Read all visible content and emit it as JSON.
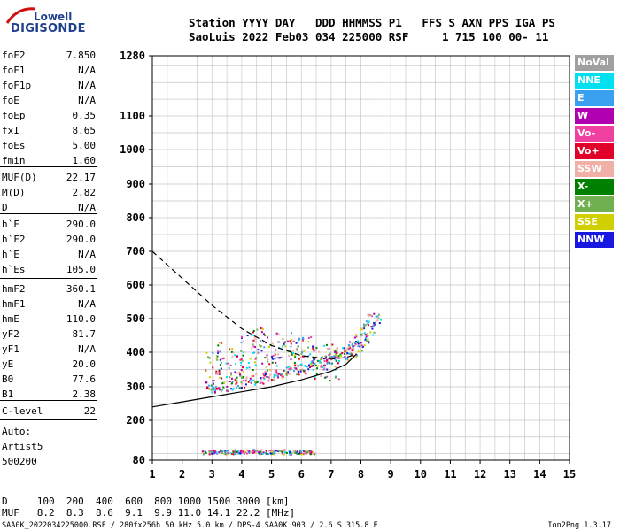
{
  "logo": {
    "top": "Lowell",
    "bottom": "DIGISONDE"
  },
  "header": {
    "line1": "Station YYYY DAY   DDD HHMMSS P1   FFS S AXN PPS IGA PS",
    "line2": "SaoLuis 2022 Feb03 034 225000 RSF     1 715 100 00- 11"
  },
  "params": [
    {
      "name": "foF2",
      "value": "7.850"
    },
    {
      "name": "foF1",
      "value": "N/A"
    },
    {
      "name": "foF1p",
      "value": "N/A"
    },
    {
      "name": "foE",
      "value": "N/A"
    },
    {
      "name": "foEp",
      "value": "0.35"
    },
    {
      "name": "fxI",
      "value": "8.65"
    },
    {
      "name": "foEs",
      "value": "5.00"
    },
    {
      "name": "fmin",
      "value": "1.60"
    },
    {
      "name": "MUF(D)",
      "value": "22.17"
    },
    {
      "name": "M(D)",
      "value": "2.82"
    },
    {
      "name": "D",
      "value": "N/A"
    },
    {
      "name": "h`F",
      "value": "290.0"
    },
    {
      "name": "h`F2",
      "value": "290.0"
    },
    {
      "name": "h`E",
      "value": "N/A"
    },
    {
      "name": "h`Es",
      "value": "105.0"
    },
    {
      "name": "hmF2",
      "value": "360.1"
    },
    {
      "name": "hmF1",
      "value": "N/A"
    },
    {
      "name": "hmE",
      "value": "110.0"
    },
    {
      "name": "yF2",
      "value": "81.7"
    },
    {
      "name": "yF1",
      "value": "N/A"
    },
    {
      "name": "yE",
      "value": "20.0"
    },
    {
      "name": "B0",
      "value": "77.6"
    },
    {
      "name": "B1",
      "value": "2.38"
    },
    {
      "name": "C-level",
      "value": "22"
    }
  ],
  "auto": {
    "line1": "Auto:",
    "line2": "Artist5",
    "line3": "500200"
  },
  "muf_table": {
    "row1": "D     100  200  400  600  800 1000 1500 3000 [km]",
    "row2": "MUF   8.2  8.3  8.6  9.1  9.9 11.0 14.1 22.2 [MHz]"
  },
  "footer": {
    "left": "SAA0K_2022034225000.RSF / 280fx256h 50 kHz 5.0 km / DPS-4 SAA0K 903 / 2.6 S 315.8 E",
    "right": "Ion2Png 1.3.17"
  },
  "legend": [
    {
      "label": "NoVal",
      "color": "#a0a0a0"
    },
    {
      "label": "NNE",
      "color": "#00e0f0"
    },
    {
      "label": "E",
      "color": "#3aa0f0"
    },
    {
      "label": "W",
      "color": "#b000b0"
    },
    {
      "label": "Vo-",
      "color": "#f040a0"
    },
    {
      "label": "Vo+",
      "color": "#e0002a"
    },
    {
      "label": "SSW",
      "color": "#f0b0a8"
    },
    {
      "label": "X-",
      "color": "#008000"
    },
    {
      "label": "X+",
      "color": "#70b050"
    },
    {
      "label": "SSE",
      "color": "#d0d000"
    },
    {
      "label": "NNW",
      "color": "#1818e0"
    }
  ],
  "chart_data": {
    "type": "scatter",
    "x_ticks": [
      "1",
      "2",
      "3",
      "4",
      "5",
      "6",
      "7",
      "8",
      "9",
      "10",
      "11",
      "12",
      "13",
      "14",
      "15"
    ],
    "y_ticks": [
      {
        "value": 80,
        "label": "80"
      },
      {
        "value": 200,
        "label": "200"
      },
      {
        "value": 300,
        "label": "300"
      },
      {
        "value": 400,
        "label": "400"
      },
      {
        "value": 500,
        "label": "500"
      },
      {
        "value": 600,
        "label": "600"
      },
      {
        "value": 700,
        "label": "700"
      },
      {
        "value": 800,
        "label": "800"
      },
      {
        "value": 900,
        "label": "900"
      },
      {
        "value": 1000,
        "label": "1000"
      },
      {
        "value": 1100,
        "label": "1100"
      },
      {
        "value": 1280,
        "label": "1280"
      }
    ],
    "xlim": [
      1,
      15
    ],
    "ylim": [
      80,
      1280
    ],
    "grid": true,
    "traces": [
      {
        "name": "O-trace",
        "x": [
          3.0,
          3.5,
          4.0,
          4.5,
          5.0,
          5.5,
          6.0,
          6.5,
          7.0,
          7.3,
          7.6,
          7.8,
          8.0,
          8.2,
          8.4
        ],
        "y": [
          300,
          305,
          315,
          325,
          335,
          345,
          355,
          370,
          385,
          395,
          405,
          420,
          440,
          470,
          500
        ]
      },
      {
        "name": "Es",
        "x": [
          2.9,
          3.2,
          3.6,
          4.0,
          4.4,
          4.8,
          5.2,
          5.6,
          6.0,
          6.2
        ],
        "y": [
          105,
          108,
          106,
          107,
          109,
          106,
          108,
          105,
          107,
          106
        ]
      },
      {
        "name": "spread-F",
        "x": [
          3.0,
          3.4,
          3.8,
          4.2,
          4.6,
          5.0,
          5.4,
          5.8,
          6.2,
          6.6,
          7.0
        ],
        "y": [
          350,
          380,
          360,
          400,
          420,
          380,
          410,
          390,
          400,
          380,
          370
        ]
      }
    ],
    "curves": [
      {
        "name": "profile-solid",
        "x": [
          1.0,
          2.0,
          3.0,
          4.0,
          5.0,
          6.0,
          7.0,
          7.5,
          7.85
        ],
        "y": [
          240,
          255,
          270,
          285,
          300,
          320,
          345,
          365,
          395
        ]
      },
      {
        "name": "profile-dashed",
        "x": [
          1.0,
          2.0,
          3.0,
          4.0,
          5.0,
          6.0,
          7.0,
          7.5,
          7.85
        ],
        "y": [
          700,
          620,
          540,
          470,
          420,
          390,
          380,
          385,
          395
        ]
      }
    ]
  }
}
